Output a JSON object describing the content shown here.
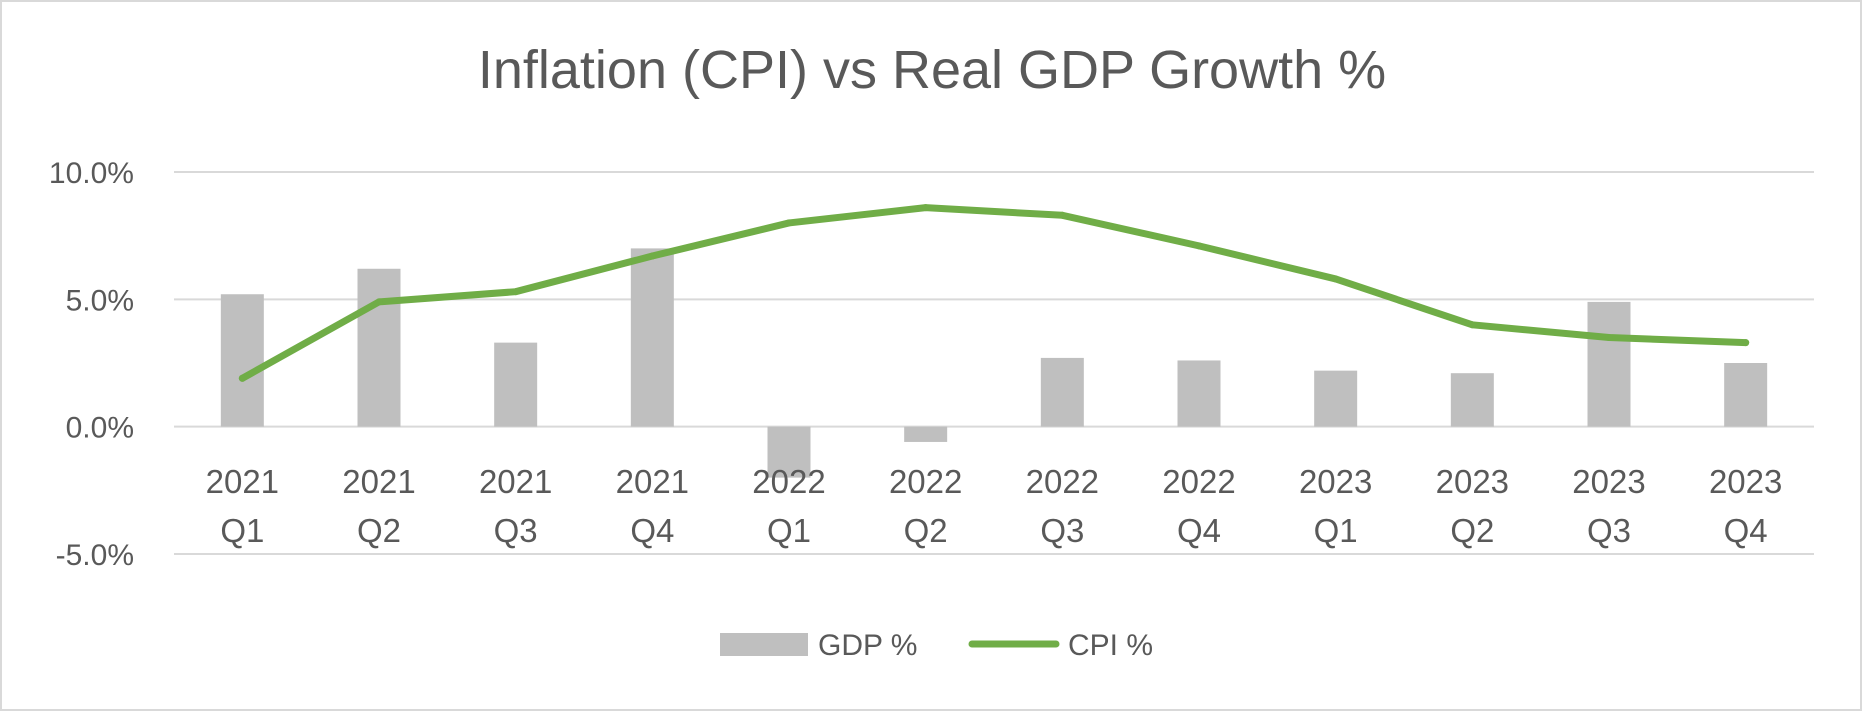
{
  "chart_data": {
    "type": "bar+line",
    "title": "Inflation (CPI) vs Real GDP  Growth %",
    "categories": [
      [
        "2021",
        "Q1"
      ],
      [
        "2021",
        "Q2"
      ],
      [
        "2021",
        "Q3"
      ],
      [
        "2021",
        "Q4"
      ],
      [
        "2022",
        "Q1"
      ],
      [
        "2022",
        "Q2"
      ],
      [
        "2022",
        "Q3"
      ],
      [
        "2022",
        "Q4"
      ],
      [
        "2023",
        "Q1"
      ],
      [
        "2023",
        "Q2"
      ],
      [
        "2023",
        "Q3"
      ],
      [
        "2023",
        "Q4"
      ]
    ],
    "series": [
      {
        "name": "GDP %",
        "type": "bar",
        "color": "#bfbfbf",
        "values": [
          5.2,
          6.2,
          3.3,
          7.0,
          -2.0,
          -0.6,
          2.7,
          2.6,
          2.2,
          2.1,
          4.9,
          2.5
        ]
      },
      {
        "name": "CPI %",
        "type": "line",
        "color": "#70ad47",
        "values": [
          1.9,
          4.9,
          5.3,
          6.7,
          8.0,
          8.6,
          8.3,
          7.1,
          5.8,
          4.0,
          3.5,
          3.3
        ]
      }
    ],
    "y_ticks": [
      "10.0%",
      "5.0%",
      "0.0%",
      "-5.0%"
    ],
    "y_tick_values": [
      10,
      5,
      0,
      -5
    ],
    "ylim": [
      -5,
      10
    ],
    "xlabel": "",
    "ylabel": "",
    "grid": true,
    "legend_position": "bottom",
    "colors": {
      "gridline": "#d9d9d9",
      "text": "#595959",
      "border": "#d9d9d9"
    }
  }
}
